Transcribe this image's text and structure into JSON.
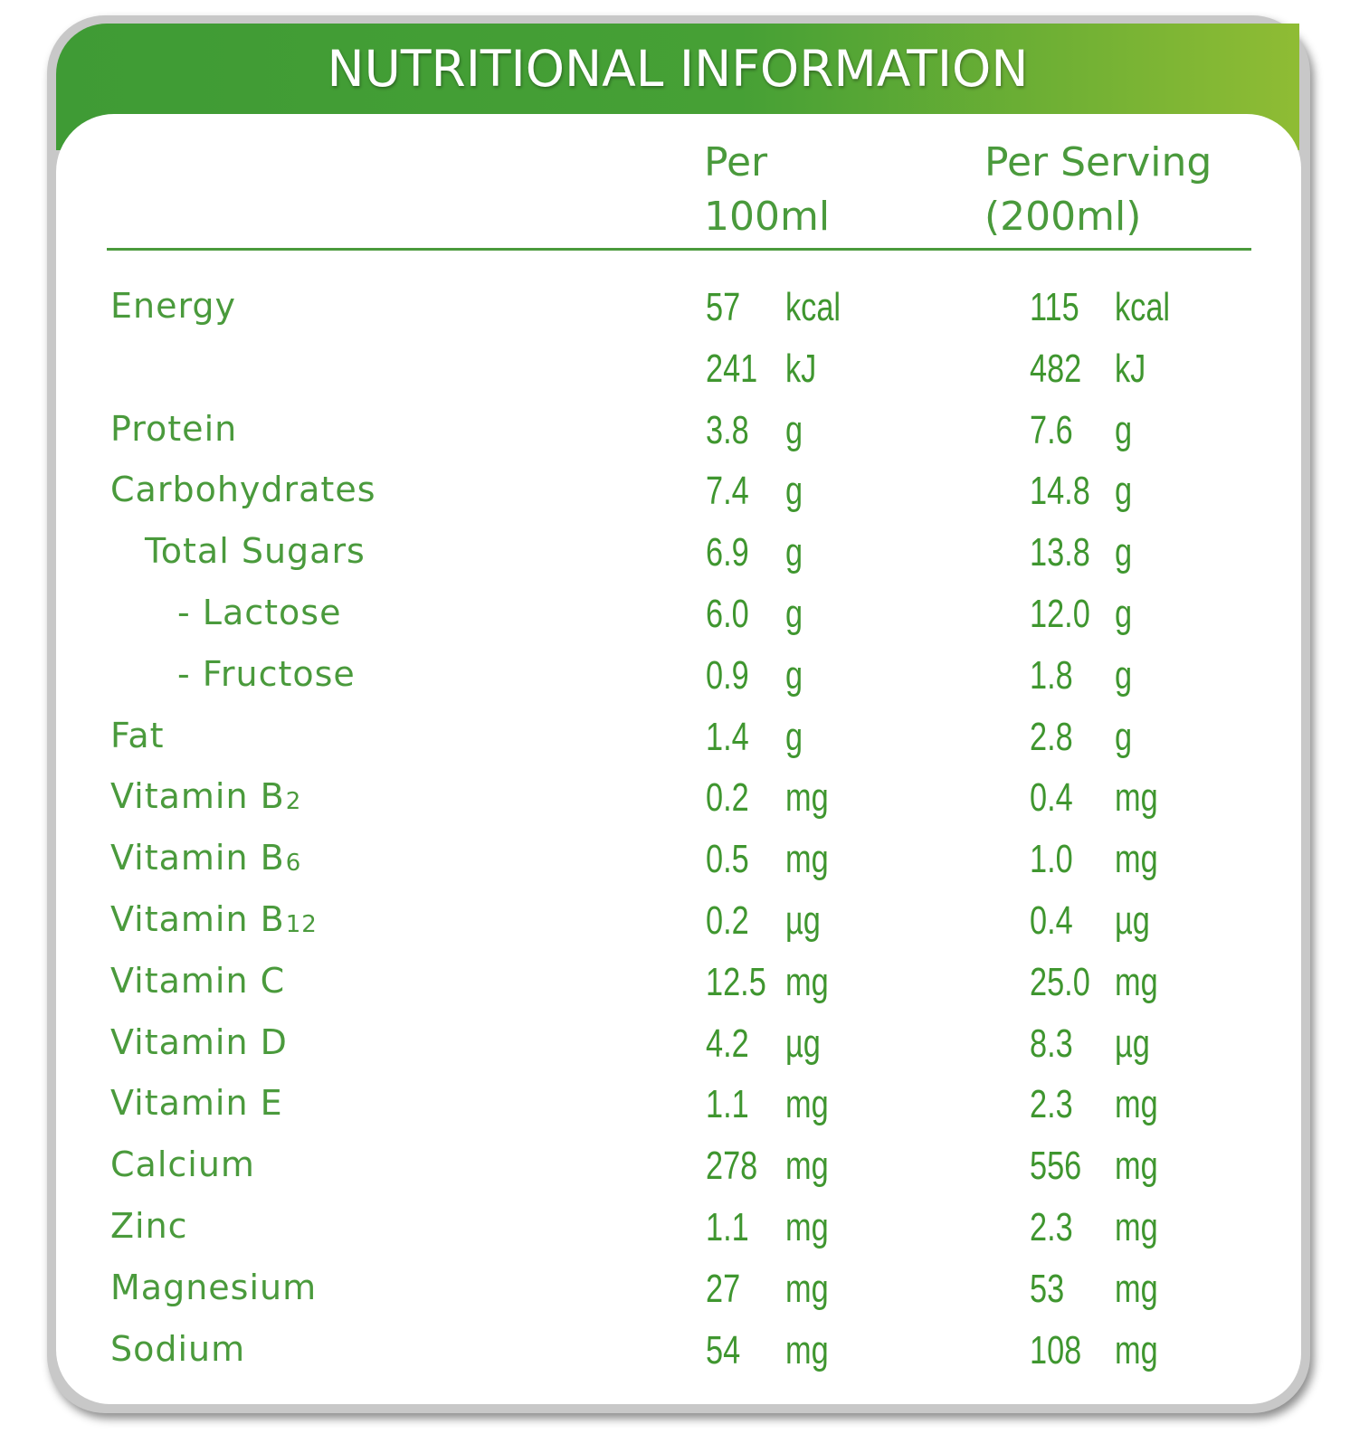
{
  "title": "NUTRITIONAL INFORMATION",
  "columns": {
    "col1_line1": "Per",
    "col1_line2": "100ml",
    "col2_line1": "Per Serving",
    "col2_line2": "(200ml)"
  },
  "rows": [
    {
      "label": "Energy",
      "sub": "",
      "indent": 0,
      "v1": "57",
      "u1": "kcal",
      "v2": "115",
      "u2": "kcal"
    },
    {
      "label": "",
      "sub": "",
      "indent": 0,
      "v1": "241",
      "u1": "kJ",
      "v2": "482",
      "u2": "kJ"
    },
    {
      "label": "Protein",
      "sub": "",
      "indent": 0,
      "v1": "3.8",
      "u1": "g",
      "v2": "7.6",
      "u2": "g"
    },
    {
      "label": "Carbohydrates",
      "sub": "",
      "indent": 0,
      "v1": "7.4",
      "u1": "g",
      "v2": "14.8",
      "u2": "g"
    },
    {
      "label": "Total Sugars",
      "sub": "",
      "indent": 1,
      "v1": "6.9",
      "u1": "g",
      "v2": "13.8",
      "u2": "g"
    },
    {
      "label": "- Lactose",
      "sub": "",
      "indent": 2,
      "v1": "6.0",
      "u1": "g",
      "v2": "12.0",
      "u2": "g"
    },
    {
      "label": "- Fructose",
      "sub": "",
      "indent": 2,
      "v1": "0.9",
      "u1": "g",
      "v2": "1.8",
      "u2": "g"
    },
    {
      "label": "Fat",
      "sub": "",
      "indent": 0,
      "v1": "1.4",
      "u1": "g",
      "v2": "2.8",
      "u2": "g"
    },
    {
      "label": "Vitamin B",
      "sub": "2",
      "indent": 0,
      "v1": "0.2",
      "u1": "mg",
      "v2": "0.4",
      "u2": "mg"
    },
    {
      "label": "Vitamin B",
      "sub": "6",
      "indent": 0,
      "v1": "0.5",
      "u1": "mg",
      "v2": "1.0",
      "u2": "mg"
    },
    {
      "label": "Vitamin B",
      "sub": "12",
      "indent": 0,
      "v1": "0.2",
      "u1": "µg",
      "v2": "0.4",
      "u2": "µg"
    },
    {
      "label": "Vitamin C",
      "sub": "",
      "indent": 0,
      "v1": "12.5",
      "u1": "mg",
      "v2": "25.0",
      "u2": "mg"
    },
    {
      "label": "Vitamin D",
      "sub": "",
      "indent": 0,
      "v1": "4.2",
      "u1": "µg",
      "v2": "8.3",
      "u2": "µg"
    },
    {
      "label": "Vitamin E",
      "sub": "",
      "indent": 0,
      "v1": "1.1",
      "u1": "mg",
      "v2": "2.3",
      "u2": "mg"
    },
    {
      "label": "Calcium",
      "sub": "",
      "indent": 0,
      "v1": "278",
      "u1": "mg",
      "v2": "556",
      "u2": "mg"
    },
    {
      "label": "Zinc",
      "sub": "",
      "indent": 0,
      "v1": "1.1",
      "u1": "mg",
      "v2": "2.3",
      "u2": "mg"
    },
    {
      "label": "Magnesium",
      "sub": "",
      "indent": 0,
      "v1": "27",
      "u1": "mg",
      "v2": "53",
      "u2": "mg"
    },
    {
      "label": "Sodium",
      "sub": "",
      "indent": 0,
      "v1": "54",
      "u1": "mg",
      "v2": "108",
      "u2": "mg"
    }
  ],
  "colors": {
    "accent_green": "#4a9a3c",
    "banner_start": "#3f9b35",
    "banner_end": "#8fbc34",
    "frame_grey": "#c8c8c8"
  }
}
